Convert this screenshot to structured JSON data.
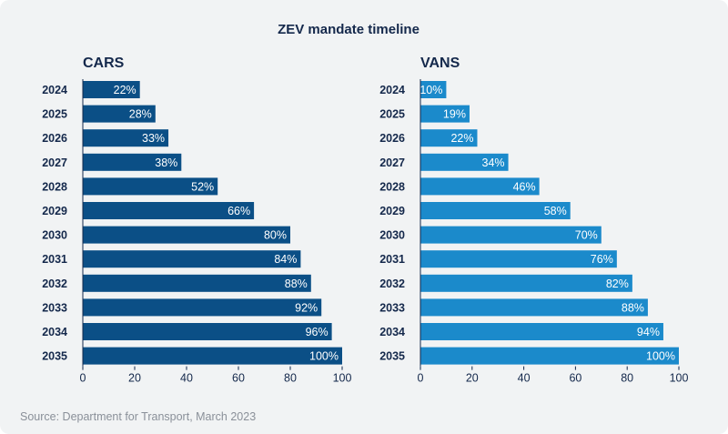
{
  "chart_data": {
    "type": "bar",
    "orientation": "horizontal",
    "title": "ZEV mandate timeline",
    "source": "Source: Department for Transport, March 2023",
    "categories": [
      "2024",
      "2025",
      "2026",
      "2027",
      "2028",
      "2029",
      "2030",
      "2031",
      "2032",
      "2033",
      "2034",
      "2035"
    ],
    "xlim": [
      0,
      100
    ],
    "x_ticks": [
      0,
      20,
      40,
      60,
      80,
      100
    ],
    "value_suffix": "%",
    "grid": false,
    "panels": [
      {
        "name": "CARS",
        "color": "#0b4f86",
        "values": [
          22,
          28,
          33,
          38,
          52,
          66,
          80,
          84,
          88,
          92,
          96,
          100
        ]
      },
      {
        "name": "VANS",
        "color": "#1b8acb",
        "values": [
          10,
          19,
          22,
          34,
          46,
          58,
          70,
          76,
          82,
          88,
          94,
          100
        ]
      }
    ]
  }
}
